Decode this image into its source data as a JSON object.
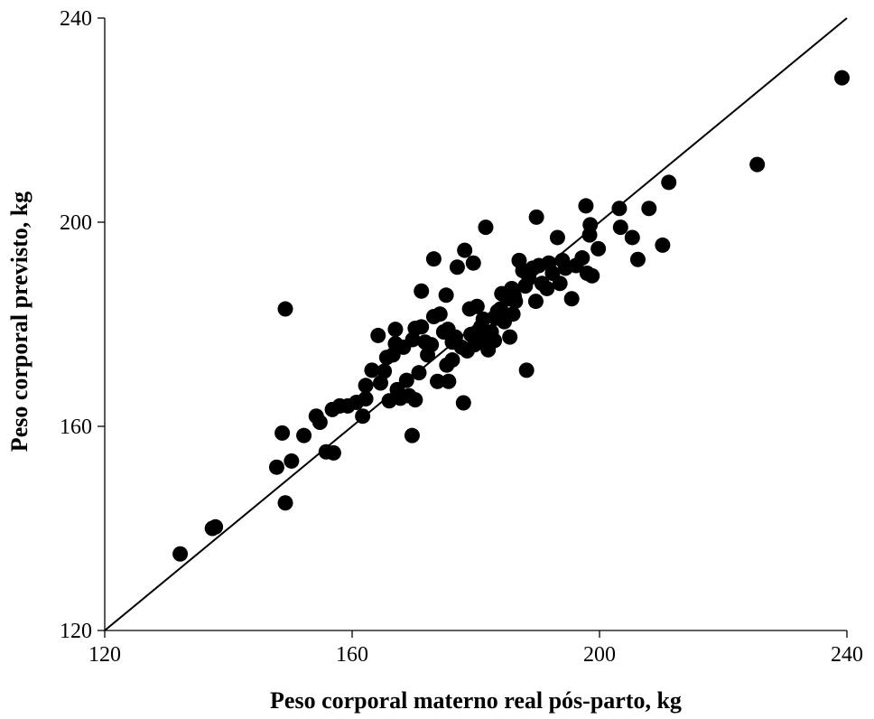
{
  "chart_data": {
    "type": "scatter",
    "title": "",
    "xlabel": "Peso corporal materno real pós-parto, kg",
    "ylabel": "Peso corporal previsto, kg",
    "xlim": [
      120,
      240
    ],
    "ylim": [
      120,
      240
    ],
    "xticks": [
      "120",
      "160",
      "200",
      "240"
    ],
    "yticks": [
      "120",
      "160",
      "200",
      "240"
    ],
    "grid": false,
    "legend": "none",
    "reference_line": {
      "label": "",
      "from": [
        120,
        120
      ],
      "to": [
        240,
        240
      ]
    },
    "series": [
      {
        "name": "",
        "color": "#000000",
        "points": [
          [
            132.2,
            135.0
          ],
          [
            137.4,
            140.0
          ],
          [
            137.9,
            140.3
          ],
          [
            147.8,
            152.0
          ],
          [
            148.7,
            158.7
          ],
          [
            149.2,
            145.0
          ],
          [
            149.2,
            183.0
          ],
          [
            150.2,
            153.2
          ],
          [
            152.2,
            158.2
          ],
          [
            154.2,
            162.0
          ],
          [
            154.8,
            160.8
          ],
          [
            155.8,
            155.0
          ],
          [
            156.8,
            163.3
          ],
          [
            157.0,
            154.8
          ],
          [
            158.0,
            164.0
          ],
          [
            159.3,
            164.0
          ],
          [
            160.7,
            164.7
          ],
          [
            161.7,
            162.0
          ],
          [
            162.2,
            165.4
          ],
          [
            162.2,
            168.0
          ],
          [
            163.2,
            171.0
          ],
          [
            164.2,
            177.8
          ],
          [
            164.6,
            168.5
          ],
          [
            165.2,
            170.8
          ],
          [
            165.6,
            173.5
          ],
          [
            166.0,
            165.0
          ],
          [
            166.6,
            174.0
          ],
          [
            167.0,
            176.2
          ],
          [
            167.0,
            179.0
          ],
          [
            167.3,
            167.2
          ],
          [
            167.8,
            165.5
          ],
          [
            168.3,
            175.5
          ],
          [
            168.8,
            169.0
          ],
          [
            169.2,
            166.0
          ],
          [
            169.7,
            158.2
          ],
          [
            169.8,
            177.0
          ],
          [
            170.2,
            179.2
          ],
          [
            170.2,
            165.2
          ],
          [
            170.8,
            170.5
          ],
          [
            171.2,
            186.5
          ],
          [
            171.2,
            179.5
          ],
          [
            171.8,
            176.5
          ],
          [
            172.2,
            174.0
          ],
          [
            172.8,
            176.0
          ],
          [
            173.2,
            192.8
          ],
          [
            173.2,
            181.5
          ],
          [
            173.8,
            168.8
          ],
          [
            174.2,
            182.0
          ],
          [
            174.8,
            178.5
          ],
          [
            175.2,
            185.7
          ],
          [
            175.3,
            172.0
          ],
          [
            175.5,
            179.0
          ],
          [
            175.6,
            168.8
          ],
          [
            176.2,
            176.5
          ],
          [
            176.2,
            173.0
          ],
          [
            176.7,
            177.5
          ],
          [
            177.0,
            191.2
          ],
          [
            177.7,
            175.5
          ],
          [
            178.0,
            164.6
          ],
          [
            178.2,
            194.5
          ],
          [
            178.6,
            174.8
          ],
          [
            179.0,
            183.0
          ],
          [
            179.2,
            178.0
          ],
          [
            179.6,
            192.0
          ],
          [
            179.8,
            176.0
          ],
          [
            180.2,
            183.5
          ],
          [
            180.2,
            177.5
          ],
          [
            180.8,
            179.5
          ],
          [
            181.2,
            181.0
          ],
          [
            181.6,
            199.0
          ],
          [
            181.6,
            177.0
          ],
          [
            182.0,
            175.0
          ],
          [
            182.5,
            178.5
          ],
          [
            183.0,
            176.8
          ],
          [
            183.2,
            181.2
          ],
          [
            183.5,
            182.5
          ],
          [
            184.0,
            183.0
          ],
          [
            184.2,
            186.0
          ],
          [
            184.6,
            180.5
          ],
          [
            185.2,
            185.0
          ],
          [
            185.5,
            177.5
          ],
          [
            185.8,
            187.0
          ],
          [
            186.0,
            182.0
          ],
          [
            186.2,
            185.5
          ],
          [
            186.4,
            184.5
          ],
          [
            187.0,
            192.5
          ],
          [
            187.6,
            190.5
          ],
          [
            188.0,
            187.5
          ],
          [
            188.2,
            171.0
          ],
          [
            188.6,
            189.0
          ],
          [
            189.2,
            191.0
          ],
          [
            189.7,
            184.5
          ],
          [
            189.8,
            201.0
          ],
          [
            190.2,
            191.5
          ],
          [
            190.7,
            188.0
          ],
          [
            191.5,
            187.0
          ],
          [
            191.8,
            192.0
          ],
          [
            192.4,
            190.0
          ],
          [
            193.2,
            197.0
          ],
          [
            193.6,
            188.0
          ],
          [
            194.0,
            192.5
          ],
          [
            194.5,
            191.0
          ],
          [
            195.5,
            185.0
          ],
          [
            196.2,
            191.5
          ],
          [
            197.2,
            193.0
          ],
          [
            197.8,
            203.2
          ],
          [
            198.0,
            190.0
          ],
          [
            198.4,
            197.5
          ],
          [
            198.5,
            199.5
          ],
          [
            198.8,
            189.5
          ],
          [
            199.8,
            194.8
          ],
          [
            203.2,
            202.7
          ],
          [
            203.4,
            199.0
          ],
          [
            205.3,
            197.0
          ],
          [
            206.2,
            192.7
          ],
          [
            208.0,
            202.7
          ],
          [
            210.2,
            195.5
          ],
          [
            211.2,
            207.8
          ],
          [
            225.5,
            211.3
          ],
          [
            239.2,
            228.3
          ]
        ]
      }
    ]
  }
}
